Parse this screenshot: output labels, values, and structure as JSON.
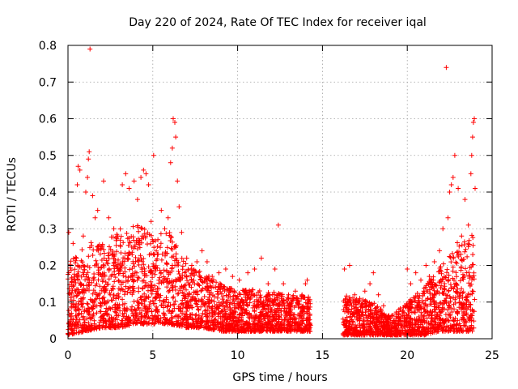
{
  "chart_data": {
    "type": "scatter",
    "title": "Day 220 of 2024, Rate Of TEC Index for receiver iqal",
    "xlabel": "GPS time / hours",
    "ylabel": "ROTI / TECUs",
    "xlim": [
      0,
      25
    ],
    "ylim": [
      0,
      0.8
    ],
    "x_ticks": [
      0,
      5,
      10,
      15,
      20,
      25
    ],
    "x_tick_labels": [
      "0",
      "5",
      "10",
      "15",
      "20",
      "25"
    ],
    "y_ticks": [
      0,
      0.1,
      0.2,
      0.3,
      0.4,
      0.5,
      0.6,
      0.7,
      0.8
    ],
    "y_tick_labels": [
      "0",
      "0.1",
      "0.2",
      "0.3",
      "0.4",
      "0.5",
      "0.6",
      "0.7",
      "0.8"
    ],
    "grid": true,
    "marker": "+",
    "color": "#ff0000",
    "series": [
      {
        "name": "ROTI",
        "points": [
          [
            0.05,
            0.29
          ],
          [
            0.3,
            0.26
          ],
          [
            0.5,
            0.22
          ],
          [
            0.55,
            0.42
          ],
          [
            0.6,
            0.47
          ],
          [
            0.7,
            0.46
          ],
          [
            0.9,
            0.28
          ],
          [
            1.05,
            0.4
          ],
          [
            1.15,
            0.44
          ],
          [
            1.2,
            0.49
          ],
          [
            1.25,
            0.51
          ],
          [
            1.3,
            0.79
          ],
          [
            1.45,
            0.39
          ],
          [
            1.6,
            0.33
          ],
          [
            1.75,
            0.35
          ],
          [
            2.1,
            0.43
          ],
          [
            2.4,
            0.33
          ],
          [
            2.7,
            0.3
          ],
          [
            2.9,
            0.28
          ],
          [
            3.2,
            0.42
          ],
          [
            3.4,
            0.45
          ],
          [
            3.6,
            0.41
          ],
          [
            3.9,
            0.43
          ],
          [
            4.1,
            0.38
          ],
          [
            4.3,
            0.44
          ],
          [
            4.45,
            0.46
          ],
          [
            4.6,
            0.45
          ],
          [
            4.75,
            0.42
          ],
          [
            4.9,
            0.32
          ],
          [
            5.05,
            0.5
          ],
          [
            5.3,
            0.27
          ],
          [
            5.5,
            0.35
          ],
          [
            5.7,
            0.3
          ],
          [
            5.9,
            0.33
          ],
          [
            6.05,
            0.48
          ],
          [
            6.15,
            0.52
          ],
          [
            6.2,
            0.6
          ],
          [
            6.3,
            0.59
          ],
          [
            6.35,
            0.55
          ],
          [
            6.45,
            0.43
          ],
          [
            6.55,
            0.36
          ],
          [
            6.7,
            0.29
          ],
          [
            7.0,
            0.22
          ],
          [
            7.3,
            0.2
          ],
          [
            7.6,
            0.21
          ],
          [
            7.9,
            0.24
          ],
          [
            8.2,
            0.21
          ],
          [
            8.5,
            0.17
          ],
          [
            8.9,
            0.18
          ],
          [
            9.3,
            0.19
          ],
          [
            9.7,
            0.17
          ],
          [
            10.1,
            0.16
          ],
          [
            10.6,
            0.18
          ],
          [
            11.0,
            0.19
          ],
          [
            11.4,
            0.22
          ],
          [
            11.8,
            0.15
          ],
          [
            12.2,
            0.19
          ],
          [
            12.4,
            0.31
          ],
          [
            12.7,
            0.15
          ],
          [
            13.0,
            0.12
          ],
          [
            13.4,
            0.13
          ],
          [
            13.8,
            0.12
          ],
          [
            14.0,
            0.15
          ],
          [
            14.1,
            0.16
          ],
          [
            16.3,
            0.19
          ],
          [
            16.6,
            0.2
          ],
          [
            16.9,
            0.12
          ],
          [
            17.2,
            0.11
          ],
          [
            17.5,
            0.13
          ],
          [
            17.8,
            0.15
          ],
          [
            18.0,
            0.18
          ],
          [
            18.3,
            0.12
          ],
          [
            18.6,
            0.09
          ],
          [
            18.9,
            0.06
          ],
          [
            19.2,
            0.05
          ],
          [
            19.5,
            0.06
          ],
          [
            19.8,
            0.07
          ],
          [
            20.0,
            0.19
          ],
          [
            20.2,
            0.15
          ],
          [
            20.5,
            0.18
          ],
          [
            20.8,
            0.16
          ],
          [
            21.1,
            0.2
          ],
          [
            21.3,
            0.17
          ],
          [
            21.6,
            0.21
          ],
          [
            21.9,
            0.24
          ],
          [
            22.1,
            0.3
          ],
          [
            22.3,
            0.74
          ],
          [
            22.4,
            0.33
          ],
          [
            22.5,
            0.4
          ],
          [
            22.6,
            0.42
          ],
          [
            22.7,
            0.44
          ],
          [
            22.8,
            0.5
          ],
          [
            23.0,
            0.41
          ],
          [
            23.2,
            0.28
          ],
          [
            23.4,
            0.38
          ],
          [
            23.6,
            0.31
          ],
          [
            23.75,
            0.45
          ],
          [
            23.8,
            0.5
          ],
          [
            23.85,
            0.55
          ],
          [
            23.9,
            0.59
          ],
          [
            23.95,
            0.6
          ],
          [
            24.0,
            0.41
          ]
        ],
        "envelope": {
          "note": "dense scatter band; per-hour typical upper and lower ROTI values",
          "hours": [
            0,
            1,
            2,
            3,
            4,
            5,
            6,
            7,
            8,
            9,
            10,
            11,
            12,
            13,
            14.3,
            16.2,
            17,
            18,
            19,
            20,
            21,
            22,
            23,
            24
          ],
          "upper": [
            0.2,
            0.27,
            0.26,
            0.3,
            0.32,
            0.28,
            0.3,
            0.2,
            0.18,
            0.15,
            0.13,
            0.14,
            0.13,
            0.12,
            0.12,
            0.12,
            0.11,
            0.1,
            0.06,
            0.1,
            0.14,
            0.2,
            0.27,
            0.3
          ],
          "lower": [
            0.01,
            0.02,
            0.03,
            0.03,
            0.04,
            0.04,
            0.04,
            0.03,
            0.03,
            0.02,
            0.02,
            0.02,
            0.02,
            0.02,
            0.02,
            0.01,
            0.01,
            0.01,
            0.01,
            0.01,
            0.01,
            0.02,
            0.02,
            0.02
          ],
          "gaps": [
            [
              14.3,
              16.2
            ]
          ],
          "points_per_hour": 170
        }
      }
    ]
  }
}
